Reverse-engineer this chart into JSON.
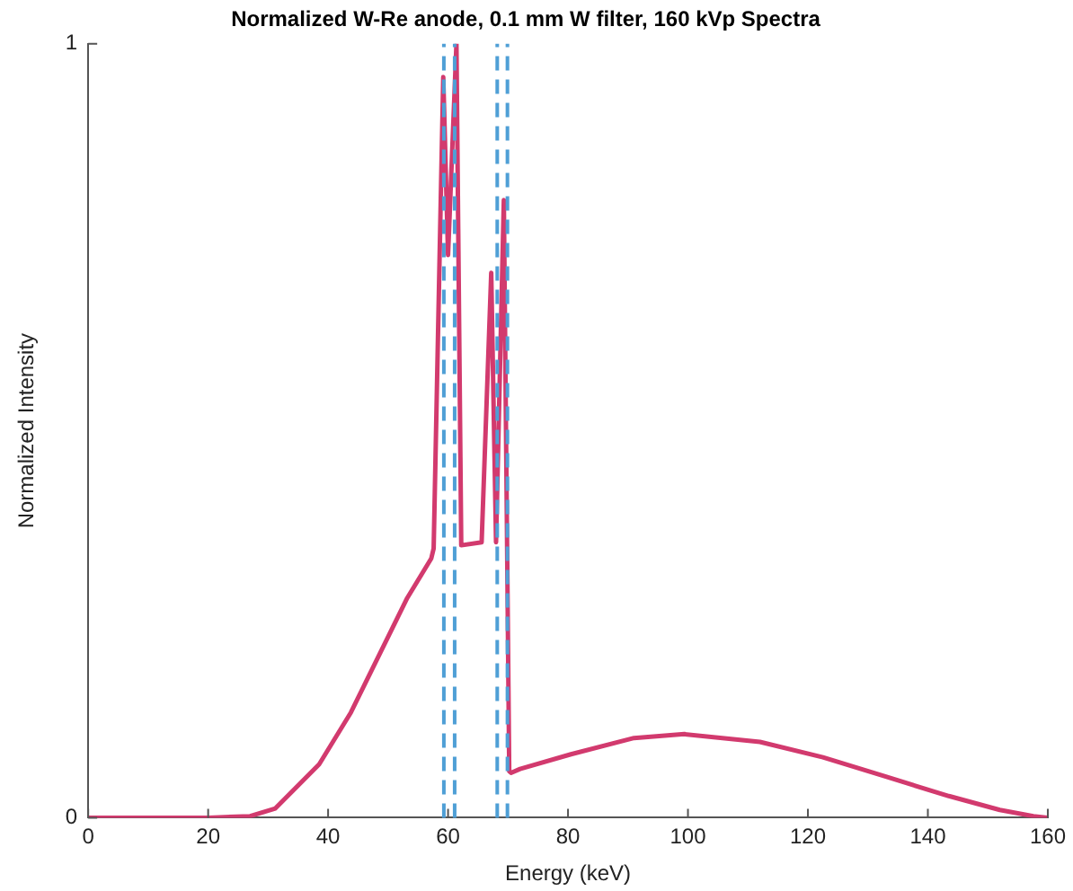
{
  "chart_data": {
    "type": "line",
    "title": "Normalized W-Re anode, 0.1 mm W filter, 160 kVp Spectra",
    "xlabel": "Energy (keV)",
    "ylabel": "Normalized Intensity",
    "x": [
      0,
      20,
      27,
      31.2,
      38.5,
      43.8,
      49,
      53.2,
      57.2,
      57.6,
      59.2,
      60,
      61.4,
      62.2,
      65.6,
      67.2,
      68,
      69.3,
      70.2,
      70.5,
      72,
      80.5,
      91,
      99.4,
      112,
      122.5,
      133,
      143.5,
      152,
      157.6,
      160
    ],
    "series": [
      {
        "color": "#d23a6e",
        "values": [
          0,
          0,
          0.002,
          0.012,
          0.069,
          0.136,
          0.218,
          0.284,
          0.335,
          0.348,
          0.957,
          0.727,
          1.0,
          0.352,
          0.356,
          0.704,
          0.356,
          0.798,
          0.06,
          0.058,
          0.063,
          0.082,
          0.103,
          0.108,
          0.098,
          0.078,
          0.053,
          0.028,
          0.01,
          0.002,
          0
        ]
      }
    ],
    "xlim": [
      0,
      160
    ],
    "xticks": [
      0,
      20,
      40,
      60,
      80,
      100,
      120,
      140,
      160
    ],
    "ylim": [
      0,
      1
    ],
    "yticks": [
      0,
      1
    ],
    "ref_lines": [
      {
        "axis": "x",
        "value": 59.3,
        "color": "#4f9fd6",
        "line_style": "dashed"
      },
      {
        "axis": "x",
        "value": 61.1,
        "color": "#4f9fd6",
        "line_style": "dashed"
      },
      {
        "axis": "x",
        "value": 68.2,
        "color": "#4f9fd6",
        "line_style": "dashed"
      },
      {
        "axis": "x",
        "value": 69.9,
        "color": "#4f9fd6",
        "line_style": "dashed"
      }
    ],
    "grid": false,
    "legend": false,
    "marker": "none",
    "line_style": "solid"
  }
}
